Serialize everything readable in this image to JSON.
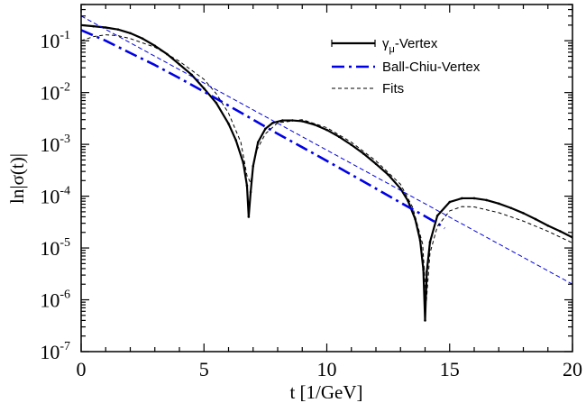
{
  "chart_data": {
    "type": "line",
    "xlabel": "t [1/GeV]",
    "ylabel": "ln|σ(t)|",
    "xlim": [
      0,
      20
    ],
    "ylim": [
      1e-07,
      0.5
    ],
    "yscale": "log",
    "grid": false,
    "legend_position": "top-right",
    "x_ticks": [
      {
        "value": 0,
        "label": "0"
      },
      {
        "value": 5,
        "label": "5"
      },
      {
        "value": 10,
        "label": "10"
      },
      {
        "value": 15,
        "label": "15"
      },
      {
        "value": 20,
        "label": "20"
      }
    ],
    "y_ticks": [
      {
        "value": 1e-07,
        "base": "10",
        "exp": "-7"
      },
      {
        "value": 1e-06,
        "base": "10",
        "exp": "-6"
      },
      {
        "value": 1e-05,
        "base": "10",
        "exp": "-5"
      },
      {
        "value": 0.0001,
        "base": "10",
        "exp": "-4"
      },
      {
        "value": 0.001,
        "base": "10",
        "exp": "-3"
      },
      {
        "value": 0.01,
        "base": "10",
        "exp": "-2"
      },
      {
        "value": 0.1,
        "base": "10",
        "exp": "-1"
      }
    ],
    "series": [
      {
        "name": "γ_μ-Vertex",
        "label_base": "γ",
        "label_sub": "μ",
        "label_rest": "-Vertex",
        "color": "#000000",
        "style": "solid-dots",
        "x": [
          0,
          0.5,
          1,
          1.5,
          2,
          2.5,
          3,
          3.5,
          4,
          4.5,
          5,
          5.5,
          6,
          6.3,
          6.6,
          6.75,
          6.82,
          6.9,
          7.0,
          7.2,
          7.5,
          7.8,
          8.2,
          8.6,
          9.0,
          9.5,
          10,
          10.5,
          11,
          11.5,
          12,
          12.5,
          13,
          13.3,
          13.6,
          13.8,
          13.93,
          14.0,
          14.07,
          14.2,
          14.5,
          15,
          15.5,
          16,
          16.5,
          17,
          17.5,
          18,
          18.5,
          19,
          19.5,
          20
        ],
        "y": [
          0.2,
          0.19,
          0.18,
          0.165,
          0.14,
          0.11,
          0.08,
          0.055,
          0.035,
          0.022,
          0.012,
          0.0063,
          0.0025,
          0.0012,
          0.00044,
          0.00016,
          4e-05,
          0.00012,
          0.00038,
          0.0011,
          0.002,
          0.0026,
          0.0029,
          0.0029,
          0.0028,
          0.0024,
          0.0019,
          0.0014,
          0.00098,
          0.00066,
          0.00042,
          0.00026,
          0.00014,
          8.2e-05,
          3.6e-05,
          1.4e-05,
          3.8e-06,
          4e-07,
          3.5e-06,
          1.3e-05,
          4.2e-05,
          7.7e-05,
          9.1e-05,
          9.1e-05,
          8.4e-05,
          7.2e-05,
          5.9e-05,
          4.7e-05,
          3.6e-05,
          2.7e-05,
          2.1e-05,
          1.6e-05
        ]
      },
      {
        "name": "Ball-Chiu-Vertex",
        "color": "#0000e6",
        "style": "dash-dot",
        "x": [
          0,
          1,
          2,
          3,
          4,
          5,
          6,
          7,
          8,
          9,
          10,
          11,
          12,
          13,
          14,
          14.5,
          14.8
        ],
        "y": [
          0.16,
          0.1,
          0.058,
          0.034,
          0.019,
          0.0104,
          0.0056,
          0.003,
          0.0016,
          0.00088,
          0.00048,
          0.00026,
          0.00014,
          7.5e-05,
          4.1e-05,
          3e-05,
          2.4e-05
        ]
      },
      {
        "name": "Fits",
        "color": "#000000",
        "style": "dashed",
        "x": [
          0,
          0.5,
          1,
          1.5,
          2,
          3,
          4,
          5,
          5.5,
          6,
          6.5,
          6.75,
          6.9,
          7.1,
          7.5,
          8,
          9,
          10,
          11,
          12,
          13,
          13.5,
          13.9,
          14.05,
          14.2,
          14.5,
          15,
          15.5,
          16,
          17,
          18,
          19,
          20
        ],
        "y": [
          0.1,
          0.12,
          0.13,
          0.125,
          0.11,
          0.075,
          0.04,
          0.018,
          0.0095,
          0.004,
          0.0011,
          0.00025,
          0.00018,
          0.0007,
          0.0016,
          0.0026,
          0.003,
          0.0021,
          0.0011,
          0.00048,
          0.00017,
          6e-05,
          1.2e-05,
          9e-07,
          8e-06,
          2.6e-05,
          5.2e-05,
          6.3e-05,
          6.2e-05,
          4.8e-05,
          3.3e-05,
          2.1e-05,
          1.25e-05
        ]
      },
      {
        "name": "",
        "color": "#0000e6",
        "style": "thin-dashed",
        "x": [
          0,
          20
        ],
        "y": [
          0.3,
          2e-06
        ]
      }
    ]
  }
}
